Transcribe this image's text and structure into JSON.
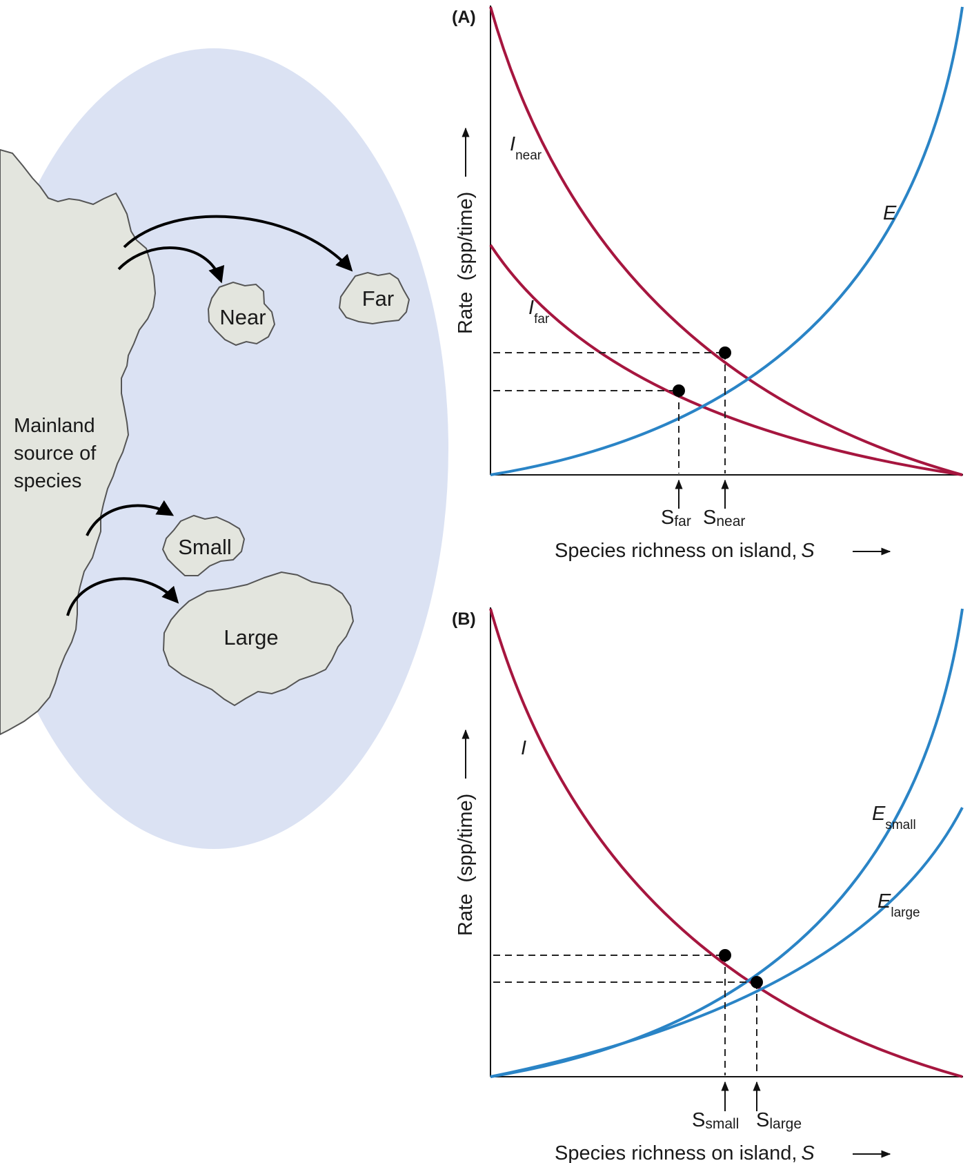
{
  "map": {
    "mainland_label": [
      "Mainland",
      "source of",
      "species"
    ],
    "islands": {
      "near": "Near",
      "far": "Far",
      "small": "Small",
      "large": "Large"
    },
    "colors": {
      "sea": "#dbe2f3",
      "land": "#e3e5de",
      "outline": "#555555"
    }
  },
  "panel_a": {
    "label": "(A)",
    "y_axis_label": "Rate  (spp/time)",
    "x_axis_label": "Species richness on island,",
    "x_axis_symbol": "S",
    "curves": {
      "i_near": {
        "main": "I",
        "sub": "near"
      },
      "i_far": {
        "main": "I",
        "sub": "far"
      },
      "e": {
        "main": "E"
      }
    },
    "equilibria": {
      "s_far": {
        "main": "S",
        "sub": "far"
      },
      "s_near": {
        "main": "S",
        "sub": "near"
      }
    }
  },
  "panel_b": {
    "label": "(B)",
    "y_axis_label": "Rate  (spp/time)",
    "x_axis_label": "Species richness on island,",
    "x_axis_symbol": "S",
    "curves": {
      "i": {
        "main": "I"
      },
      "e_small": {
        "main": "E",
        "sub": "small"
      },
      "e_large": {
        "main": "E",
        "sub": "large"
      }
    },
    "equilibria": {
      "s_small": {
        "main": "S",
        "sub": "small"
      },
      "s_large": {
        "main": "S",
        "sub": "large"
      }
    }
  },
  "colors": {
    "immigration": "#a6163f",
    "extinction": "#2a84c6",
    "axes": "#111111"
  }
}
